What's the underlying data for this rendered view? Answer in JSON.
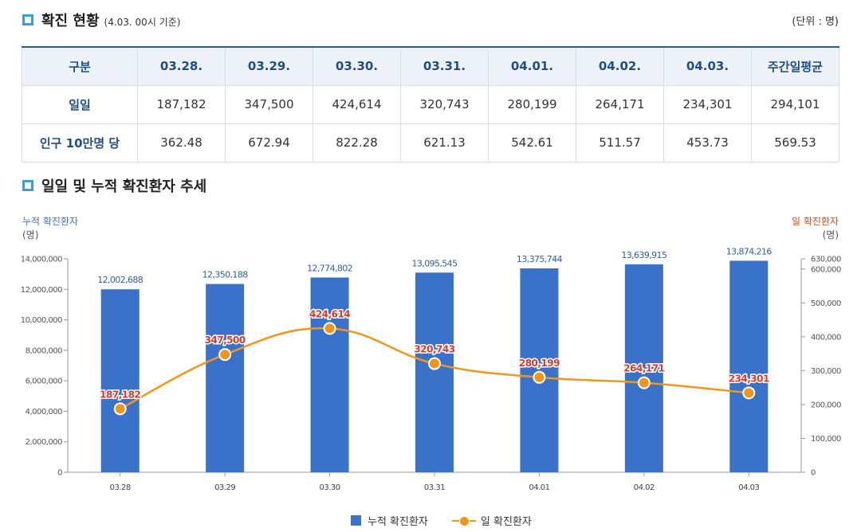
{
  "section1": {
    "title": "확진 현황",
    "sub": "(4.03. 00시 기준)",
    "unit": "(단위 : 명)"
  },
  "table": {
    "headers": [
      "구분",
      "03.28.",
      "03.29.",
      "03.30.",
      "03.31.",
      "04.01.",
      "04.02.",
      "04.03.",
      "주간일평균"
    ],
    "rows": [
      {
        "label": "일일",
        "values": [
          "187,182",
          "347,500",
          "424,614",
          "320,743",
          "280,199",
          "264,171",
          "234,301",
          "294,101"
        ]
      },
      {
        "label": "인구 10만명 당",
        "values": [
          "362.48",
          "672.94",
          "822.28",
          "621.13",
          "542.61",
          "511.57",
          "453.73",
          "569.53"
        ]
      }
    ]
  },
  "section2": {
    "title": "일일 및 누적 확진환자 추세"
  },
  "axis": {
    "left_title": "누적 확진환자",
    "left_unit": "(명)",
    "right_title": "일 확진환자",
    "right_unit": "(명)"
  },
  "legend": {
    "bar": "누적 확진환자",
    "line": "일 확진환자"
  },
  "colors": {
    "bar": "#3a72c9",
    "line": "#f0961b",
    "line_label": "#d83a2a",
    "bar_label": "#2e5f9e",
    "header_text": "#1f4e86",
    "accent_icon": "#3aa0d8"
  },
  "chart_data": {
    "type": "bar",
    "categories": [
      "03.28",
      "03.29",
      "03.30",
      "03.31",
      "04.01",
      "04.02",
      "04.03"
    ],
    "series": [
      {
        "name": "누적 확진환자",
        "type": "bar",
        "axis": "left",
        "values": [
          12002688,
          12350188,
          12774802,
          13095545,
          13375744,
          13639915,
          13874216
        ],
        "labels": [
          "12,002,688",
          "12,350,188",
          "12,774,802",
          "13,095,545",
          "13,375,744",
          "13,639,915",
          "13,874,216"
        ]
      },
      {
        "name": "일 확진환자",
        "type": "line",
        "axis": "right",
        "values": [
          187182,
          347500,
          424614,
          320743,
          280199,
          264171,
          234301
        ],
        "labels": [
          "187,182",
          "347,500",
          "424,614",
          "320,743",
          "280,199",
          "264,171",
          "234,301"
        ]
      }
    ],
    "left_axis": {
      "ylim": [
        0,
        14000000
      ],
      "ticks": [
        0,
        2000000,
        4000000,
        6000000,
        8000000,
        10000000,
        12000000,
        14000000
      ],
      "tick_labels": [
        "0",
        "2,000,000",
        "4,000,000",
        "6,000,000",
        "8,000,000",
        "10,000,000",
        "12,000,000",
        "14,000,000"
      ]
    },
    "right_axis": {
      "ylim": [
        0,
        630000
      ],
      "ticks": [
        0,
        100000,
        200000,
        300000,
        400000,
        500000,
        600000,
        630000
      ],
      "tick_labels": [
        "0",
        "100,000",
        "200,000",
        "300,000",
        "400,000",
        "500,000",
        "600,000",
        "630,000"
      ]
    },
    "legend_position": "bottom-center",
    "grid": false
  }
}
